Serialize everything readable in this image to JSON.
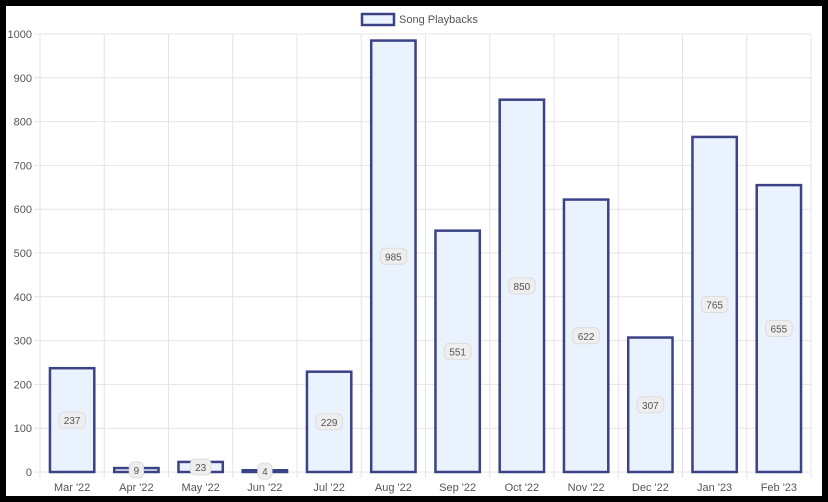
{
  "colors": {
    "bar_fill": "#eaf3fd",
    "bar_stroke": "#3b4286",
    "grid": "#e4e4e4",
    "axis_text": "#555555",
    "label_bg": "#eeeeee",
    "label_text": "#555555"
  },
  "chart_data": {
    "type": "bar",
    "categories": [
      "Mar '22",
      "Apr '22",
      "May '22",
      "Jun '22",
      "Jul '22",
      "Aug '22",
      "Sep '22",
      "Oct '22",
      "Nov '22",
      "Dec '22",
      "Jan '23",
      "Feb '23"
    ],
    "series": [
      {
        "name": "Song Playbacks",
        "values": [
          237,
          9,
          23,
          4,
          229,
          985,
          551,
          850,
          622,
          307,
          765,
          655
        ]
      }
    ],
    "y_ticks": [
      "0",
      "100",
      "200",
      "300",
      "400",
      "500",
      "600",
      "700",
      "800",
      "900",
      "1000"
    ],
    "ylim": [
      0,
      1000
    ],
    "grid": true,
    "legend_position": "top-center",
    "data_labels": true
  }
}
